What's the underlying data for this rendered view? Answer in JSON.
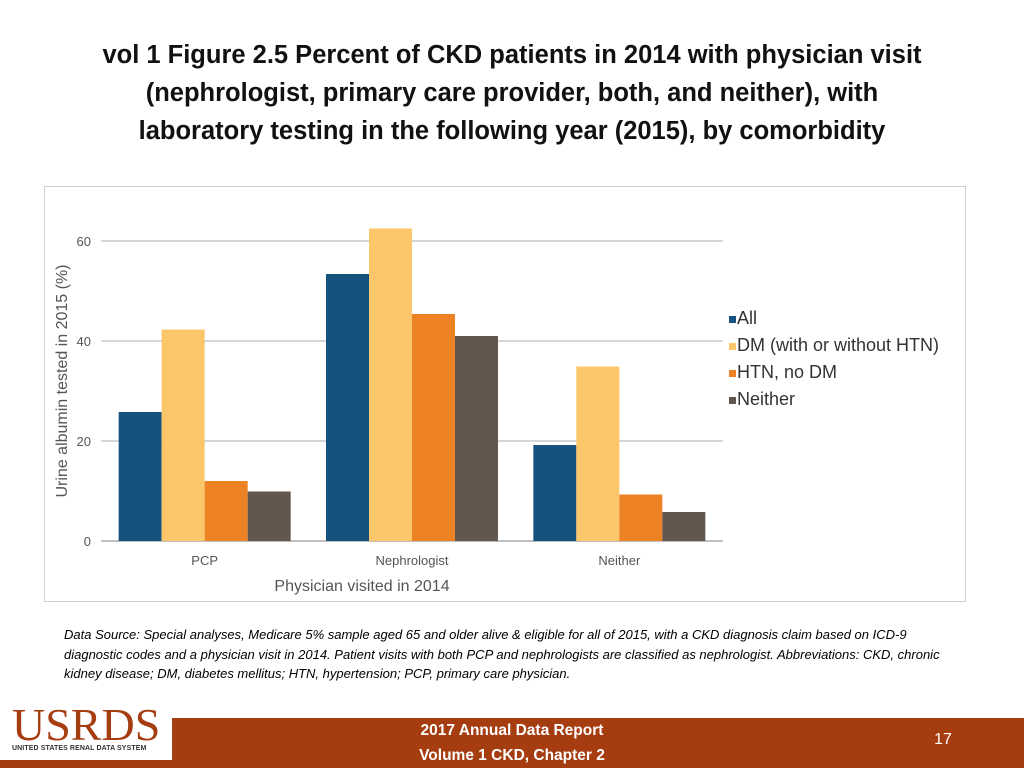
{
  "slide": {
    "title_lines": [
      "vol 1 Figure 2.5 Percent of CKD patients in 2014 with physician visit",
      "(nephrologist, primary care provider, both, and neither), with",
      "laboratory testing in the following year (2015), by comorbidity"
    ],
    "source_note": "Data Source: Special analyses, Medicare 5% sample aged 65 and older alive & eligible for all of 2015, with a CKD diagnosis claim based on ICD-9 diagnostic codes and a physician visit in 2014. Patient visits with both PCP and nephrologists are classified as nephrologist. Abbreviations: CKD, chronic kidney disease; DM, diabetes mellitus; HTN, hypertension; PCP, primary care physician."
  },
  "footer": {
    "logo_text": "USRDS",
    "logo_subtext": "UNITED STATES RENAL DATA SYSTEM",
    "line1": "2017 Annual Data Report",
    "line2": "Volume 1 CKD, Chapter 2",
    "page_number": "17"
  },
  "chart_data": {
    "type": "bar",
    "title": "",
    "xlabel": "Physician visited in 2014",
    "ylabel": "Urine albumin tested in 2015 (%)",
    "ylim": [
      0,
      60
    ],
    "yticks": [
      0,
      20,
      40,
      60
    ],
    "grid": true,
    "legend_position": "right",
    "categories": [
      "PCP",
      "Nephrologist",
      "Neither"
    ],
    "series": [
      {
        "name": "All",
        "color": "#17527f",
        "values": [
          25.8,
          53.4,
          19.2
        ]
      },
      {
        "name": "DM (with or without HTN)",
        "color": "#fcc76a",
        "values": [
          42.3,
          62.5,
          34.9
        ]
      },
      {
        "name": "HTN, no DM",
        "color": "#ed8225",
        "values": [
          12.0,
          45.4,
          9.3
        ]
      },
      {
        "name": "Neither",
        "color": "#62574f",
        "values": [
          9.9,
          41.0,
          5.8
        ]
      }
    ]
  }
}
